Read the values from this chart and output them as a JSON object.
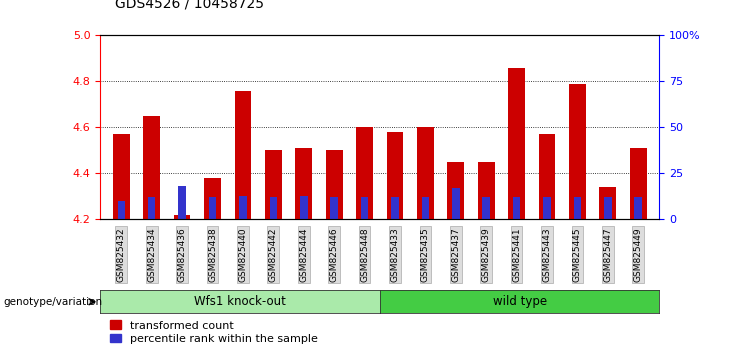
{
  "title": "GDS4526 / 10458725",
  "samples": [
    "GSM825432",
    "GSM825434",
    "GSM825436",
    "GSM825438",
    "GSM825440",
    "GSM825442",
    "GSM825444",
    "GSM825446",
    "GSM825448",
    "GSM825433",
    "GSM825435",
    "GSM825437",
    "GSM825439",
    "GSM825441",
    "GSM825443",
    "GSM825445",
    "GSM825447",
    "GSM825449"
  ],
  "red_values": [
    4.57,
    4.65,
    4.22,
    4.38,
    4.76,
    4.5,
    4.51,
    4.5,
    4.6,
    4.58,
    4.6,
    4.45,
    4.45,
    4.86,
    4.57,
    4.79,
    4.34,
    4.51
  ],
  "blue_percentiles": [
    10,
    12,
    18,
    12,
    13,
    12,
    13,
    12,
    12,
    12,
    12,
    17,
    12,
    12,
    12,
    12,
    12,
    12
  ],
  "red_color": "#cc0000",
  "blue_color": "#3333cc",
  "ylim_left": [
    4.2,
    5.0
  ],
  "ylim_right": [
    0,
    100
  ],
  "yticks_left": [
    4.2,
    4.4,
    4.6,
    4.8,
    5.0
  ],
  "yticks_right": [
    0,
    25,
    50,
    75,
    100
  ],
  "ytick_right_labels": [
    "0",
    "25",
    "50",
    "75",
    "100%"
  ],
  "grid_lines": [
    4.4,
    4.6,
    4.8
  ],
  "group1_label": "Wfs1 knock-out",
  "group2_label": "wild type",
  "group1_count": 9,
  "group2_count": 9,
  "group1_color": "#aaeaaa",
  "group2_color": "#44cc44",
  "genotype_label": "genotype/variation",
  "legend_red": "transformed count",
  "legend_blue": "percentile rank within the sample",
  "bar_width": 0.55,
  "base_value": 4.2
}
